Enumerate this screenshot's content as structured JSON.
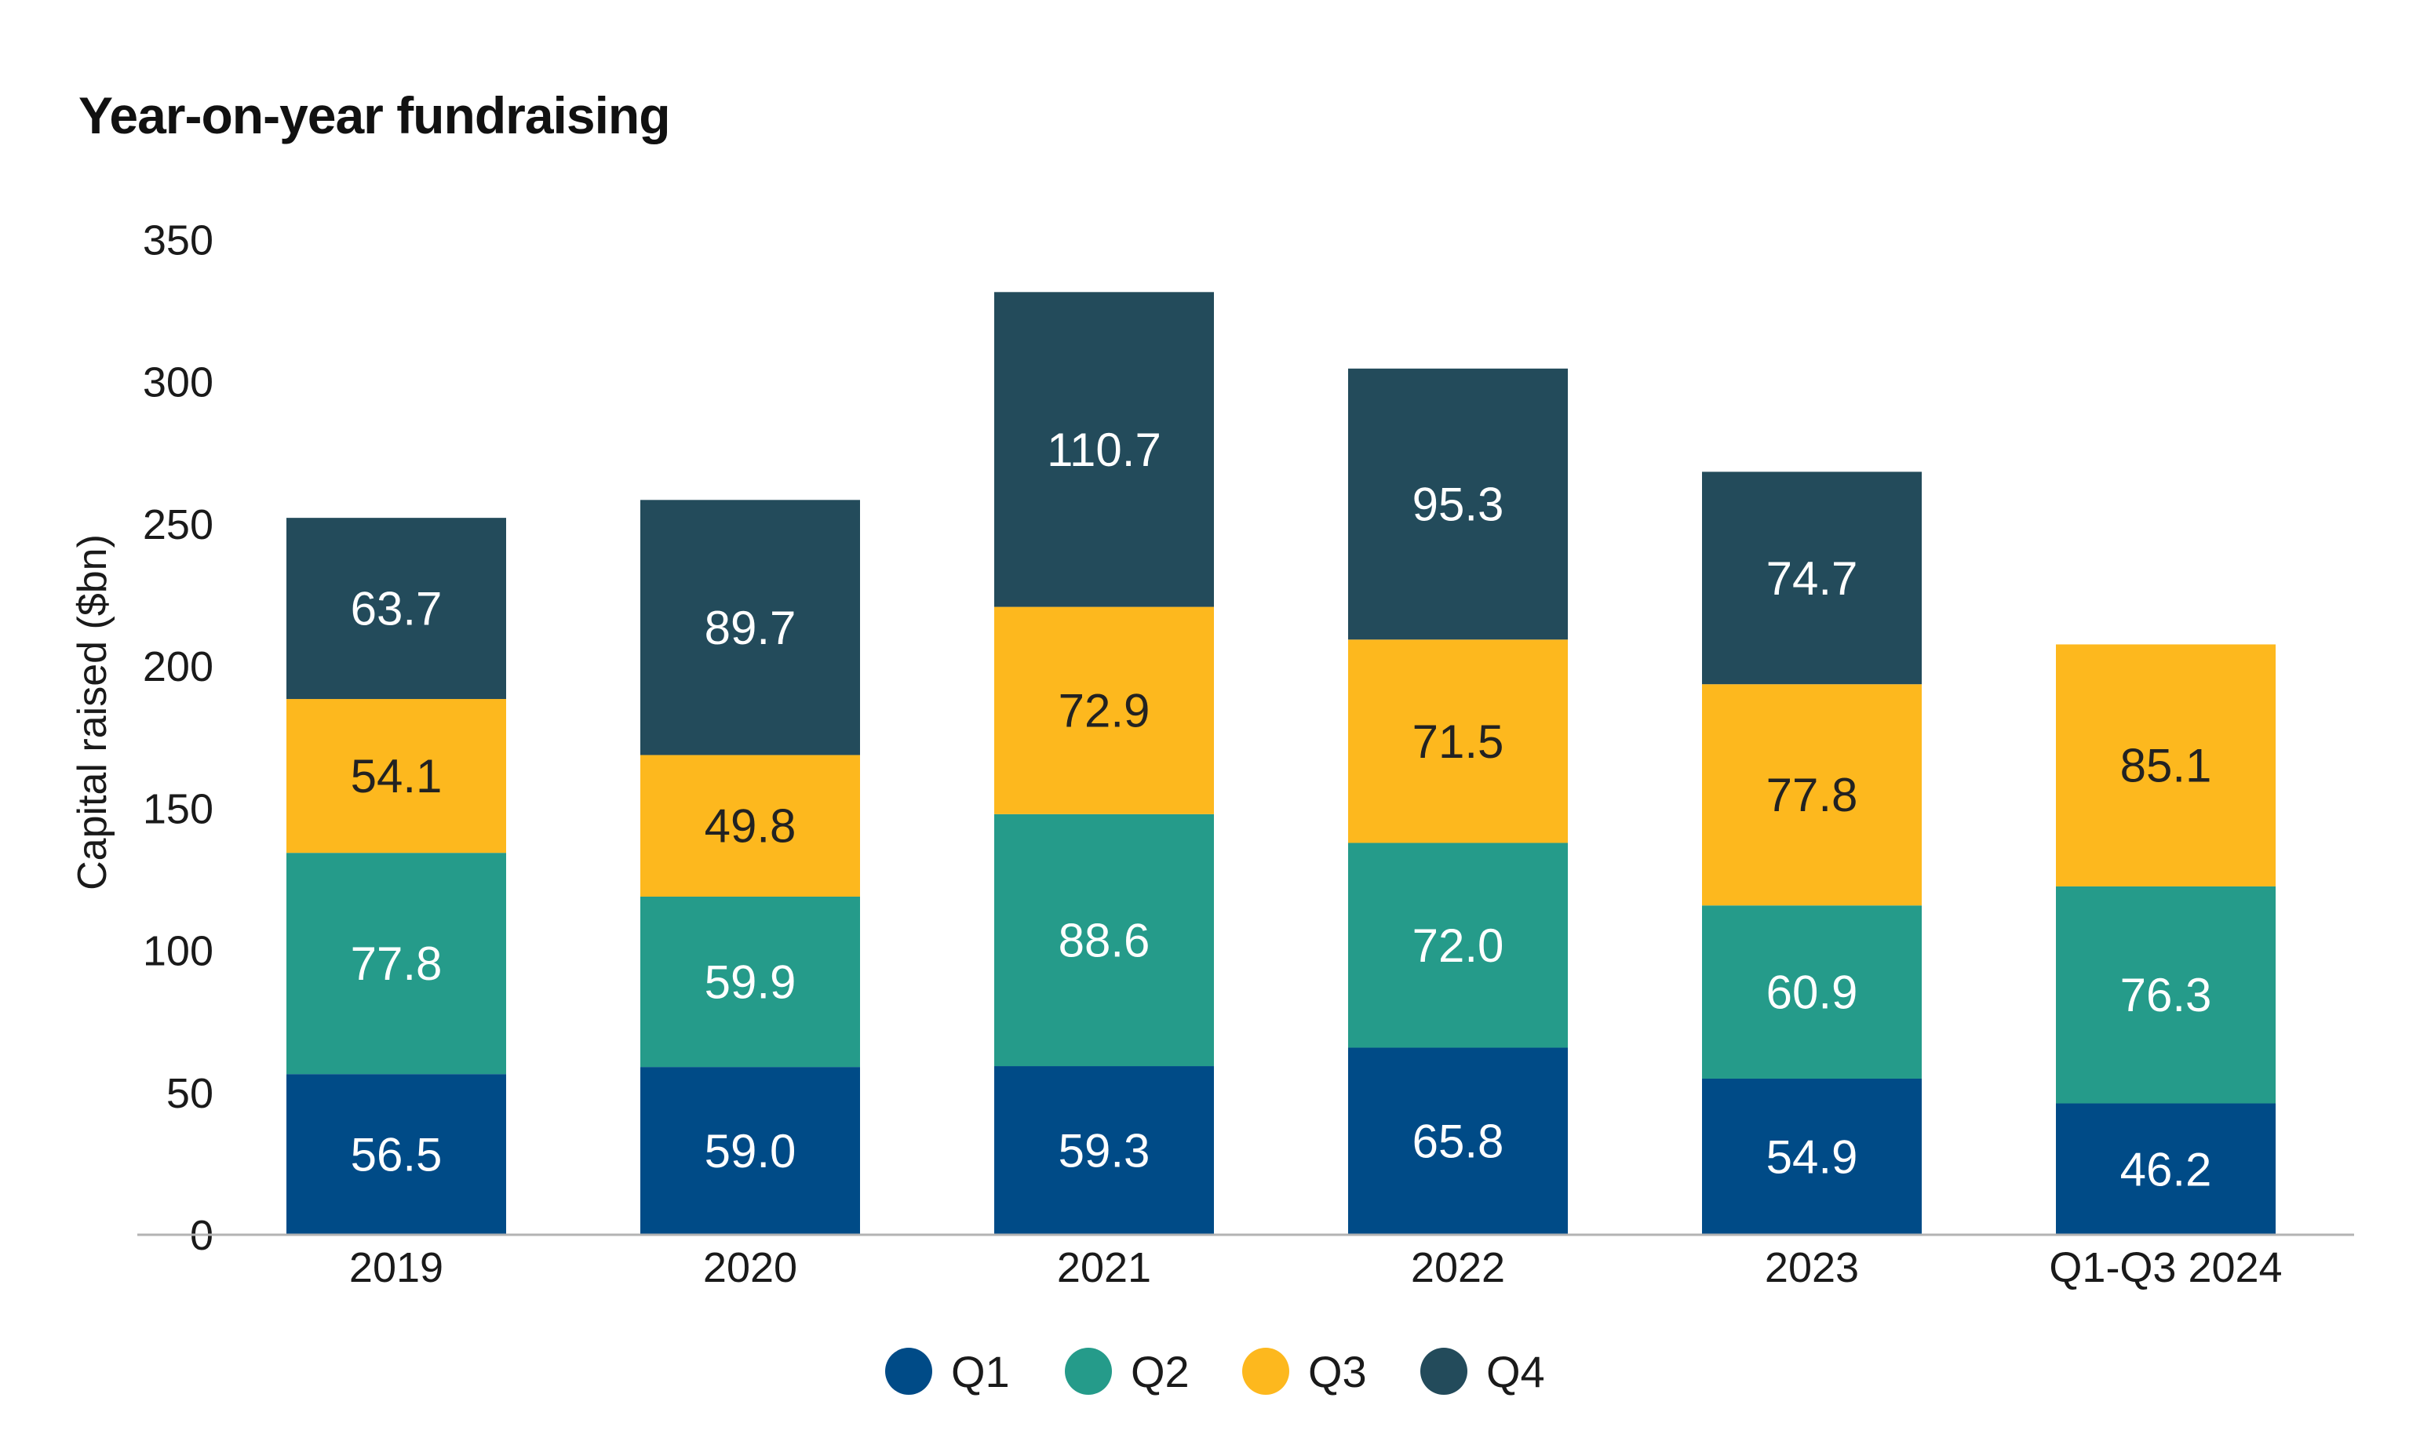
{
  "chart_data": {
    "type": "bar",
    "stacked": true,
    "title": "Year-on-year fundraising",
    "ylabel": "Capital raised ($bn)",
    "xlabel": "",
    "ylim": [
      0,
      350
    ],
    "yticks": [
      0,
      50,
      100,
      150,
      200,
      250,
      300,
      350
    ],
    "ytick_labels": [
      "0",
      "50",
      "100",
      "150",
      "200",
      "250",
      "300",
      "350"
    ],
    "grid": false,
    "legend_position": "bottom-center",
    "categories": [
      "2019",
      "2020",
      "2021",
      "2022",
      "2023",
      "Q1-Q3 2024"
    ],
    "series": [
      {
        "name": "Q1",
        "color": "#004B87",
        "label_color": "#ffffff",
        "values": [
          56.5,
          59.0,
          59.3,
          65.8,
          54.9,
          46.2
        ]
      },
      {
        "name": "Q2",
        "color": "#259B8A",
        "label_color": "#ffffff",
        "values": [
          77.8,
          59.9,
          88.6,
          72.0,
          60.9,
          76.3
        ]
      },
      {
        "name": "Q3",
        "color": "#FDB81E",
        "label_color": "#222222",
        "values": [
          54.1,
          49.8,
          72.9,
          71.5,
          77.8,
          85.1
        ]
      },
      {
        "name": "Q4",
        "color": "#234B5B",
        "label_color": "#ffffff",
        "values": [
          63.7,
          89.7,
          110.7,
          95.3,
          74.7,
          null
        ]
      }
    ],
    "data_labels": [
      [
        "56.5",
        "59.0",
        "59.3",
        "65.8",
        "54.9",
        "46.2"
      ],
      [
        "77.8",
        "59.9",
        "88.6",
        "72.0",
        "60.9",
        "76.3"
      ],
      [
        "54.1",
        "49.8",
        "72.9",
        "71.5",
        "77.8",
        "85.1"
      ],
      [
        "63.7",
        "89.7",
        "110.7",
        "95.3",
        "74.7",
        ""
      ]
    ]
  },
  "colors": {
    "axis_line": "#b3b3b3"
  }
}
